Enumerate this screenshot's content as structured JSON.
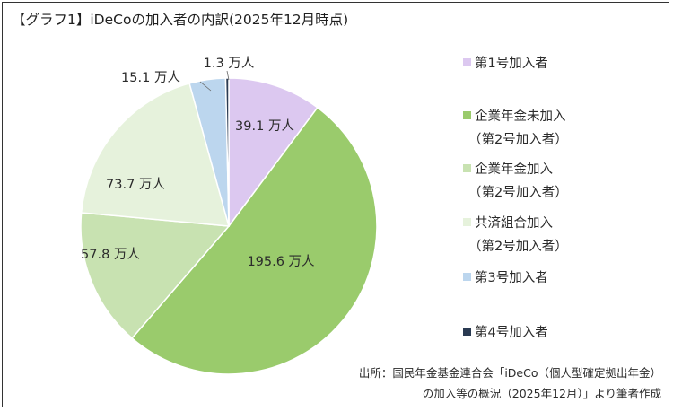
{
  "chart_data": {
    "type": "pie",
    "title": "【グラフ1】iDeCoの加入者の内訳(2025年12月時点)",
    "unit_label": "万人",
    "slices": [
      {
        "name": "第1号加入者",
        "value": 39.1,
        "label": "39.1 万人",
        "color": "#dcc8f0"
      },
      {
        "name": "企業年金未加入（第2号加入者）",
        "legend_lines": [
          "企業年金未加入",
          "（第2号加入者）"
        ],
        "value": 195.6,
        "label": "195.6 万人",
        "color": "#9acb6c"
      },
      {
        "name": "企業年金加入（第2号加入者）",
        "legend_lines": [
          "企業年金加入",
          "（第2号加入者）"
        ],
        "value": 57.8,
        "label": "57.8 万人",
        "color": "#c8e2b1"
      },
      {
        "name": "共済組合加入（第2号加入者）",
        "legend_lines": [
          "共済組合加入",
          "（第2号加入者）"
        ],
        "value": 73.7,
        "label": "73.7 万人",
        "color": "#e6f2dc"
      },
      {
        "name": "第3号加入者",
        "value": 15.1,
        "label": "15.1 万人",
        "color": "#bcd6ee"
      },
      {
        "name": "第4号加入者",
        "value": 1.3,
        "label": "1.3 万人",
        "color": "#2a3a52"
      }
    ],
    "legend_position": "right",
    "source_lines": [
      "出所：国民年金基金連合会「iDeCo（個人型確定拠出年金）",
      "の加入等の概況（2025年12月）」より筆者作成"
    ]
  }
}
